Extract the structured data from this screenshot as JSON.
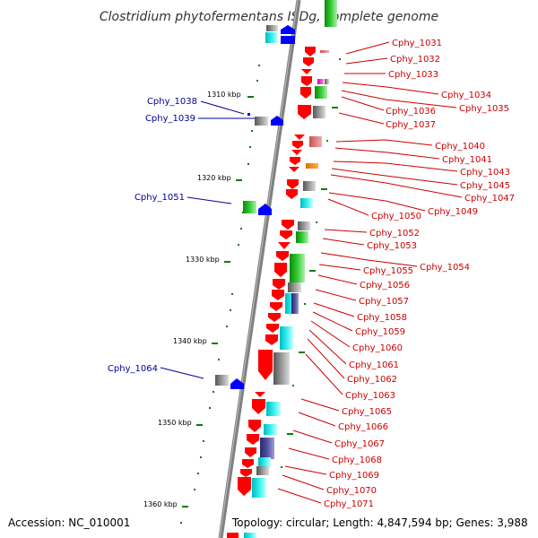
{
  "title": "Clostridium phytofermentans ISDg, complete genome",
  "footer": {
    "accession": "Accession: NC_010001",
    "topology": "Topology: circular; Length: 4,847,594 bp; Genes: 3,988"
  },
  "colors": {
    "forward_strand": "#ff0000",
    "reverse_strand": "#0000ff",
    "right_label": "#cc0000",
    "left_label": "#000099",
    "backbone": "#808080",
    "tick": "#008000"
  },
  "scale_labels": [
    "1310 kbp",
    "1320 kbp",
    "1330 kbp",
    "1340 kbp",
    "1350 kbp",
    "1360 kbp"
  ],
  "right_labels": [
    "Cphy_1031",
    "Cphy_1032",
    "Cphy_1033",
    "Cphy_1034",
    "Cphy_1035",
    "Cphy_1036",
    "Cphy_1037",
    "Cphy_1040",
    "Cphy_1041",
    "Cphy_1043",
    "Cphy_1045",
    "Cphy_1047",
    "Cphy_1049",
    "Cphy_1050",
    "Cphy_1052",
    "Cphy_1053",
    "Cphy_1054",
    "Cphy_1055",
    "Cphy_1056",
    "Cphy_1057",
    "Cphy_1058",
    "Cphy_1059",
    "Cphy_1060",
    "Cphy_1061",
    "Cphy_1062",
    "Cphy_1063",
    "Cphy_1065",
    "Cphy_1066",
    "Cphy_1067",
    "Cphy_1068",
    "Cphy_1069",
    "Cphy_1070",
    "Cphy_1071"
  ],
  "left_labels": [
    "Cphy_1038",
    "Cphy_1039",
    "Cphy_1051",
    "Cphy_1064"
  ]
}
